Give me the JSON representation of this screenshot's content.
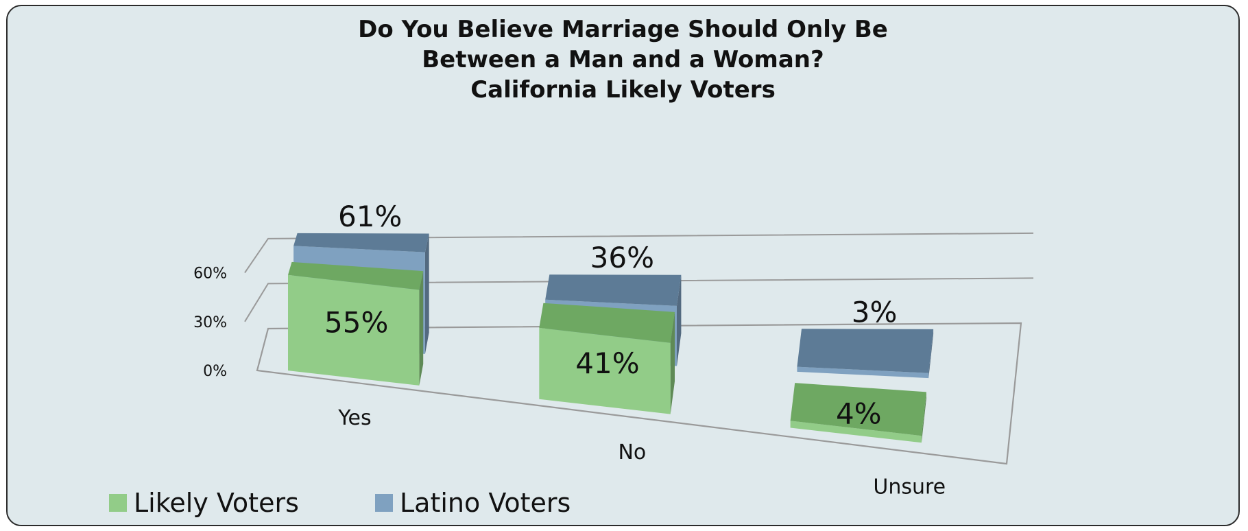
{
  "colors": {
    "likely_front": "#92cc88",
    "likely_top": "#6ea862",
    "likely_side": "#5f8a56",
    "latino_front": "#7fa1c0",
    "latino_top": "#5d7b96",
    "latino_side": "#536a80",
    "grid": "#9a9a9a",
    "background": "#dfe9ec"
  },
  "chart_data": {
    "type": "bar",
    "title": [
      "Do You Believe Marriage  Should Only Be",
      "Between a Man and a Woman?",
      "California Likely Voters"
    ],
    "categories": [
      "Yes",
      "No",
      "Unsure"
    ],
    "series": [
      {
        "name": "Likely Voters",
        "values": [
          55,
          41,
          4
        ],
        "labels": [
          "55%",
          "41%",
          "4%"
        ]
      },
      {
        "name": "Latino Voters",
        "values": [
          61,
          36,
          3
        ],
        "labels": [
          "61%",
          "36%",
          "3%"
        ]
      }
    ],
    "yticks": [
      "0%",
      "30%",
      "60%"
    ],
    "ytick_values": [
      0,
      30,
      60
    ],
    "ylim": [
      0,
      80
    ],
    "grid": true,
    "legend_position": "bottom-left",
    "style": "3d-clustered-column"
  }
}
